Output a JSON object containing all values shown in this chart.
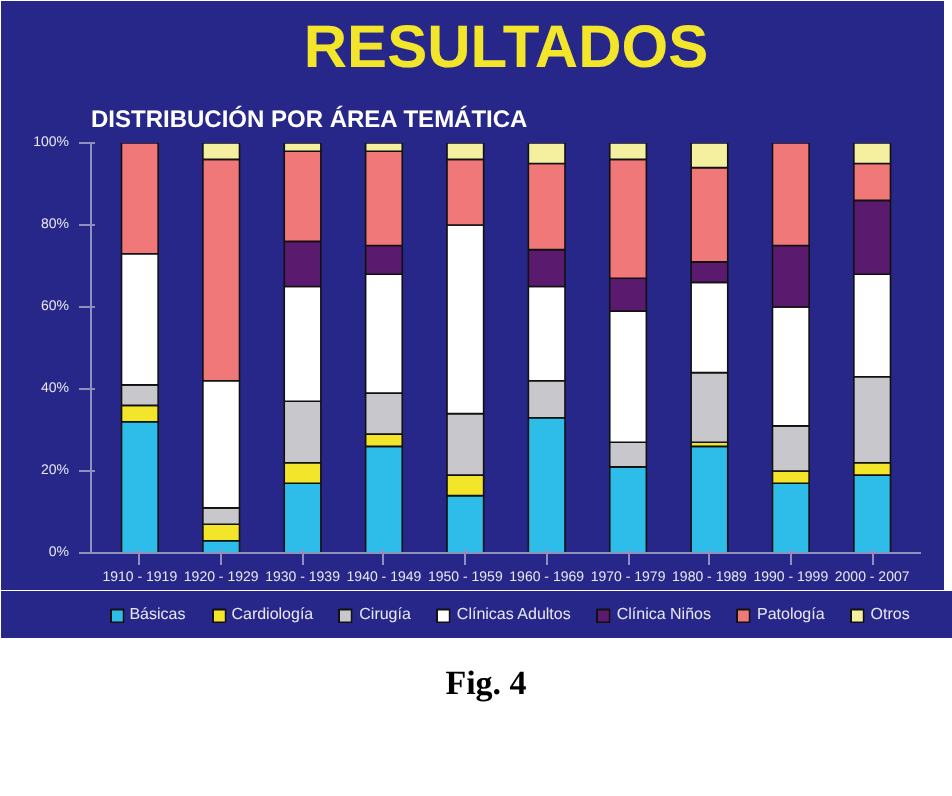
{
  "chart_data": {
    "type": "bar",
    "title": "RESULTADOS",
    "subtitle": "DISTRIBUCIÓN POR ÁREA TEMÁTICA",
    "categories": [
      "1910 - 1919",
      "1920 - 1929",
      "1930 - 1939",
      "1940 - 1949",
      "1950 - 1959",
      "1960 - 1969",
      "1970 - 1979",
      "1980 - 1989",
      "1990 - 1999",
      "2000 - 2007"
    ],
    "stacked": true,
    "series": [
      {
        "name": "Básicas",
        "color": "#2ebde8",
        "values": [
          32,
          3,
          17,
          26,
          14,
          33,
          21,
          26,
          17,
          19
        ]
      },
      {
        "name": "Cardiología",
        "color": "#f2e52a",
        "values": [
          4,
          4,
          5,
          3,
          5,
          null,
          null,
          1,
          3,
          3
        ]
      },
      {
        "name": "Cirugía",
        "color": "#c8c8cc",
        "values": [
          5,
          4,
          15,
          10,
          15,
          9,
          6,
          17,
          11,
          21
        ]
      },
      {
        "name": "Clínicas Adultos",
        "color": "#ffffff",
        "values": [
          32,
          31,
          28,
          29,
          46,
          23,
          32,
          22,
          29,
          25
        ]
      },
      {
        "name": "Clínica Niños",
        "color": "#5a1a6e",
        "values": [
          null,
          null,
          11,
          7,
          null,
          9,
          8,
          5,
          15,
          18
        ]
      },
      {
        "name": "Patología",
        "color": "#f07878",
        "values": [
          27,
          54,
          22,
          23,
          16,
          21,
          29,
          23,
          25,
          9
        ]
      },
      {
        "name": "Otros",
        "color": "#f5f0a0",
        "values": [
          null,
          4,
          2,
          2,
          4,
          5,
          4,
          6,
          null,
          5
        ]
      }
    ],
    "ylim": [
      0,
      100
    ],
    "yticks": [
      {
        "value": 0,
        "label": "0%"
      },
      {
        "value": 20,
        "label": "20%"
      },
      {
        "value": 40,
        "label": "40%"
      },
      {
        "value": 60,
        "label": "60%"
      },
      {
        "value": 80,
        "label": "80%"
      },
      {
        "value": 100,
        "label": "100%"
      }
    ],
    "grid": false,
    "legend": "bottom",
    "annotations": [
      "Fig. 4"
    ]
  }
}
